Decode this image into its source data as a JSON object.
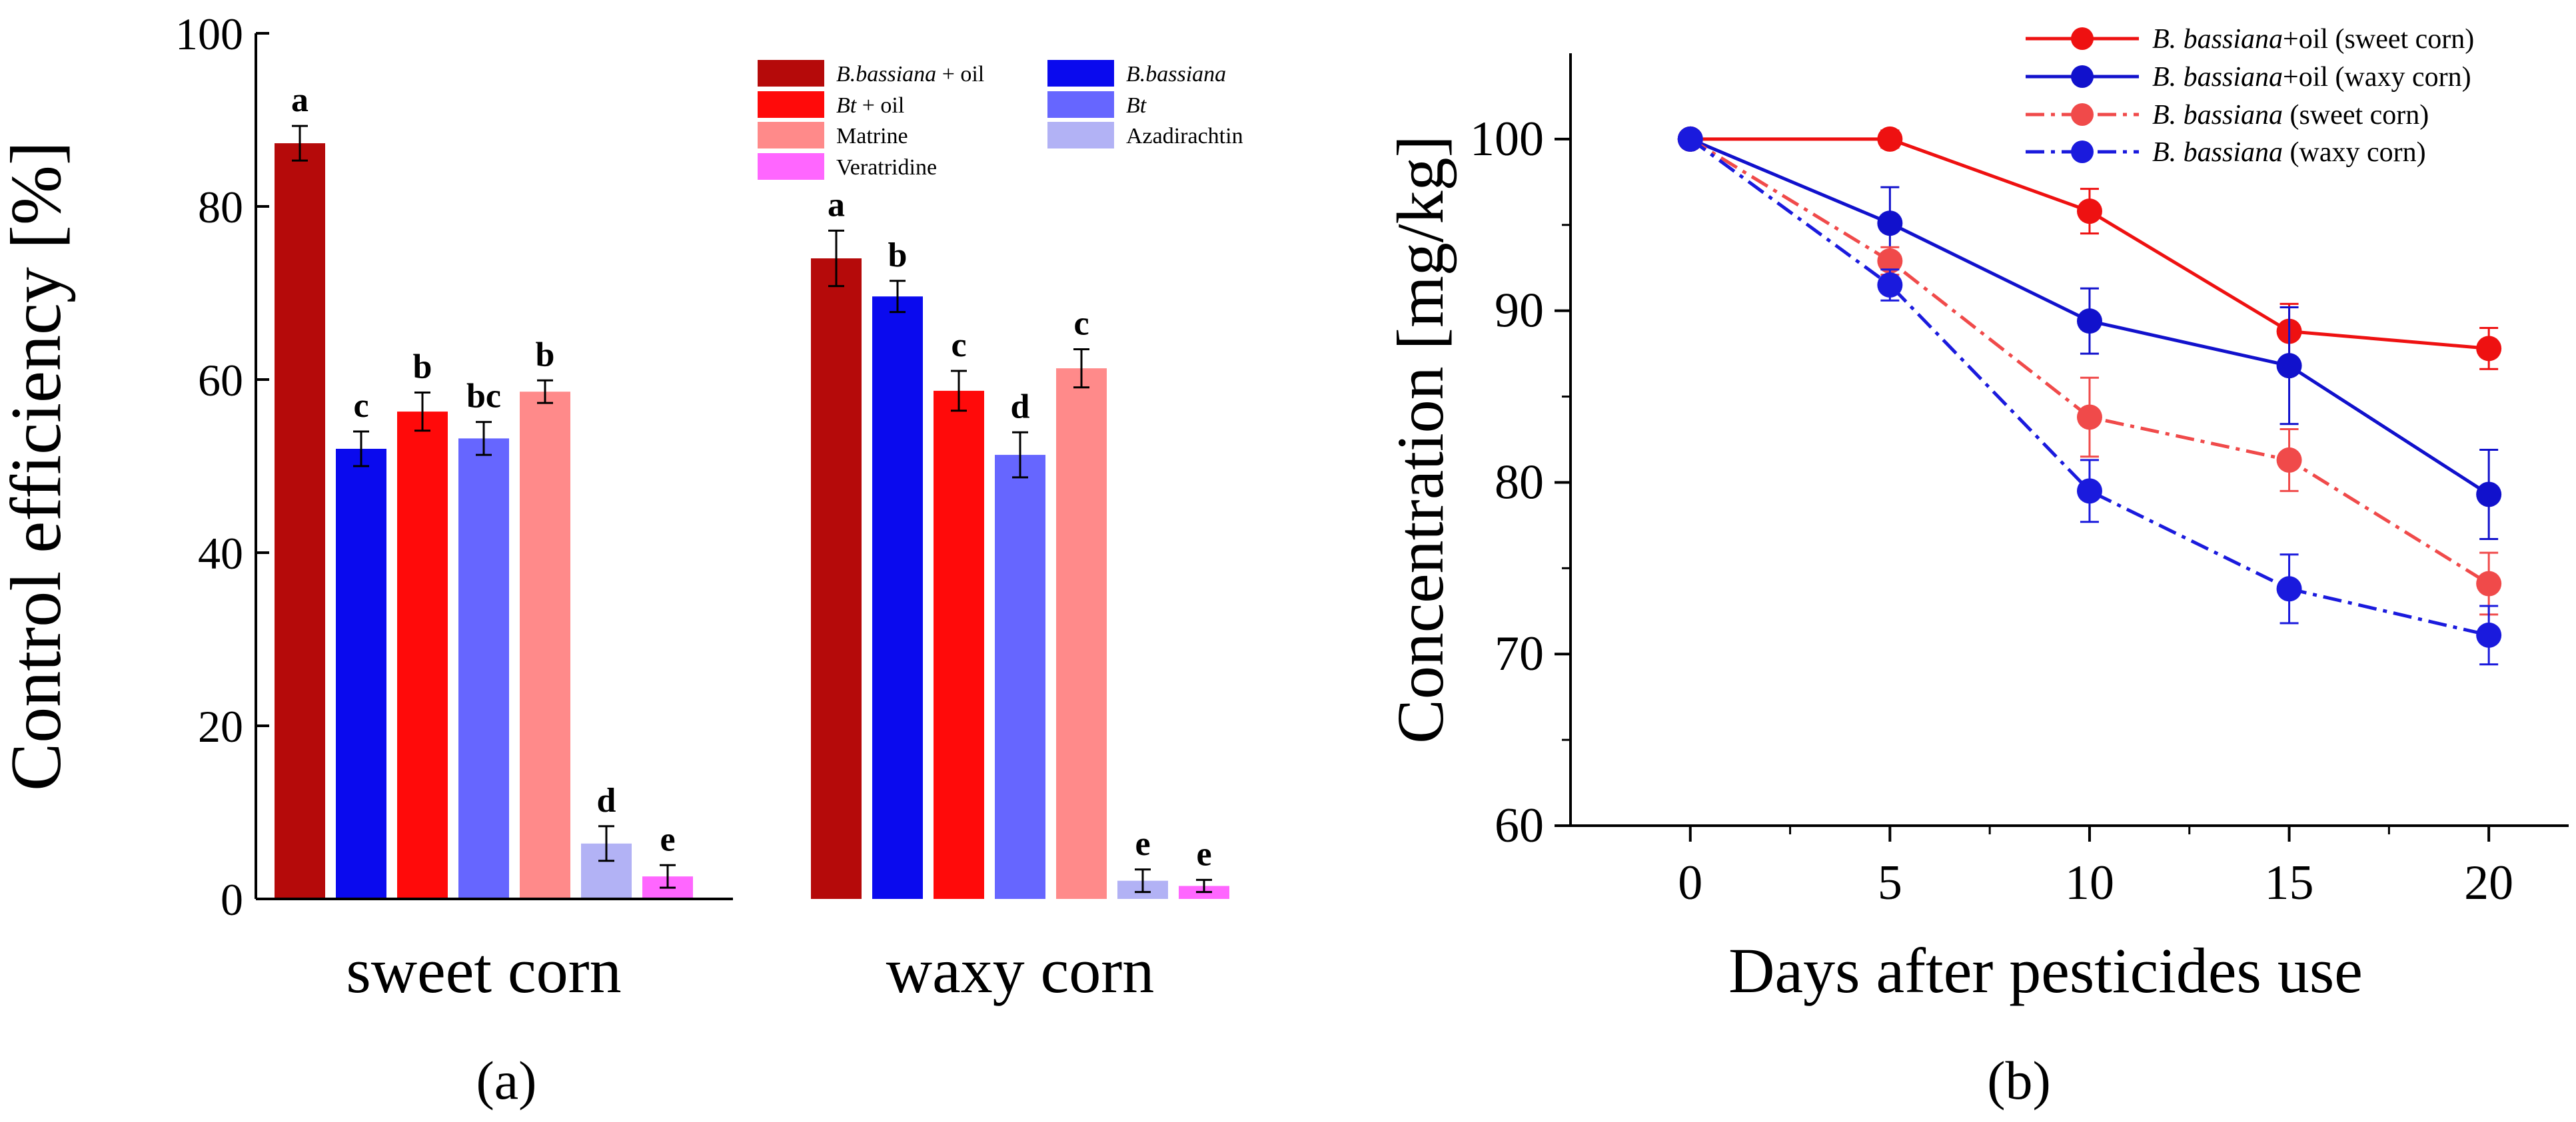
{
  "colors": {
    "dark_red": "#B50A0A",
    "blue": "#0A0AEE",
    "red": "#FF0A0A",
    "medium_blue": "#6666FF",
    "salmon": "#FF8A8A",
    "light_blue": "#B2B2F5",
    "magenta": "#FF66FF",
    "line_red": "#EE1111",
    "line_blue": "#1111CC",
    "line_red_light": "#F04A4A",
    "line_blue_dash": "#1A1ADD"
  },
  "chart_data": [
    {
      "type": "bar",
      "panel_label": "(a)",
      "ylabel": "Control efficiency [%]",
      "xlabel": "",
      "ylim": [
        0,
        100
      ],
      "yticks": [
        "0",
        "20",
        "40",
        "60",
        "80",
        "100"
      ],
      "categories": [
        "sweet corn",
        "waxy corn"
      ],
      "legend": [
        {
          "prefix": "B.bassiana",
          "suffix": " + oil",
          "color_key": "dark_red"
        },
        {
          "prefix": "Bt",
          "suffix": " + oil",
          "color_key": "red"
        },
        {
          "prefix": "",
          "suffix": "Matrine",
          "color_key": "salmon"
        },
        {
          "prefix": "",
          "suffix": "Veratridine",
          "color_key": "magenta"
        },
        {
          "prefix": "B.bassiana",
          "suffix": "",
          "color_key": "blue"
        },
        {
          "prefix": "Bt",
          "suffix": "",
          "color_key": "medium_blue"
        },
        {
          "prefix": "",
          "suffix": "Azadirachtin",
          "color_key": "light_blue"
        }
      ],
      "groups": [
        {
          "name": "sweet corn",
          "bars": [
            {
              "series": "B.bassiana + oil",
              "value": 87.3,
              "error": 2.0,
              "label": "a",
              "color_key": "dark_red"
            },
            {
              "series": "B.bassiana",
              "value": 52.0,
              "error": 2.0,
              "label": "c",
              "color_key": "blue"
            },
            {
              "series": "Bt + oil",
              "value": 56.3,
              "error": 2.2,
              "label": "b",
              "color_key": "red"
            },
            {
              "series": "Bt",
              "value": 53.2,
              "error": 1.9,
              "label": "bc",
              "color_key": "medium_blue"
            },
            {
              "series": "Matrine",
              "value": 58.6,
              "error": 1.3,
              "label": "b",
              "color_key": "salmon"
            },
            {
              "series": "Azadirachtin",
              "value": 6.4,
              "error": 2.0,
              "label": "d",
              "color_key": "light_blue"
            },
            {
              "series": "Veratridine",
              "value": 2.6,
              "error": 1.3,
              "label": "e",
              "color_key": "magenta"
            }
          ]
        },
        {
          "name": "waxy corn",
          "bars": [
            {
              "series": "B.bassiana + oil",
              "value": 74.0,
              "error": 3.2,
              "label": "a",
              "color_key": "dark_red"
            },
            {
              "series": "B.bassiana",
              "value": 69.6,
              "error": 1.8,
              "label": "b",
              "color_key": "blue"
            },
            {
              "series": "Bt + oil",
              "value": 58.7,
              "error": 2.3,
              "label": "c",
              "color_key": "red"
            },
            {
              "series": "Bt",
              "value": 51.3,
              "error": 2.6,
              "label": "d",
              "color_key": "medium_blue"
            },
            {
              "series": "Matrine",
              "value": 61.3,
              "error": 2.2,
              "label": "c",
              "color_key": "salmon"
            },
            {
              "series": "Azadirachtin",
              "value": 2.1,
              "error": 1.3,
              "label": "e",
              "color_key": "light_blue"
            },
            {
              "series": "Veratridine",
              "value": 1.5,
              "error": 0.7,
              "label": "e",
              "color_key": "magenta"
            }
          ]
        }
      ]
    },
    {
      "type": "line",
      "panel_label": "(b)",
      "xlabel": "Days after pesticides use",
      "ylabel": "Concentration [mg/kg]",
      "xlim": [
        -3,
        22
      ],
      "ylim": [
        60,
        105
      ],
      "xticks": [
        0,
        5,
        10,
        15,
        20
      ],
      "yticks": [
        60,
        70,
        80,
        90,
        100
      ],
      "x": [
        0,
        5,
        10,
        15,
        20
      ],
      "series": [
        {
          "italic": "B. bassiana",
          "plain": "+oil (sweet corn)",
          "values": [
            100,
            100,
            95.8,
            88.8,
            87.8
          ],
          "errors": [
            0,
            0.5,
            1.3,
            1.6,
            1.2
          ],
          "dashed": false,
          "color_key": "line_red"
        },
        {
          "italic": "B. bassiana",
          "plain": "+oil (waxy corn)",
          "values": [
            100,
            95.1,
            89.4,
            86.8,
            79.3
          ],
          "errors": [
            0,
            2.1,
            1.9,
            3.4,
            2.6
          ],
          "dashed": false,
          "color_key": "line_blue"
        },
        {
          "italic": "B. bassiana",
          "plain": " (sweet corn)",
          "values": [
            100,
            92.9,
            83.8,
            81.3,
            74.1
          ],
          "errors": [
            0,
            0.8,
            2.3,
            1.8,
            1.8
          ],
          "dashed": true,
          "color_key": "line_red_light"
        },
        {
          "italic": "B. bassiana",
          "plain": " (waxy corn)",
          "values": [
            100,
            91.5,
            79.5,
            73.8,
            71.1
          ],
          "errors": [
            0,
            0.9,
            1.8,
            2.0,
            1.7
          ],
          "dashed": true,
          "color_key": "line_blue_dash"
        }
      ]
    }
  ]
}
